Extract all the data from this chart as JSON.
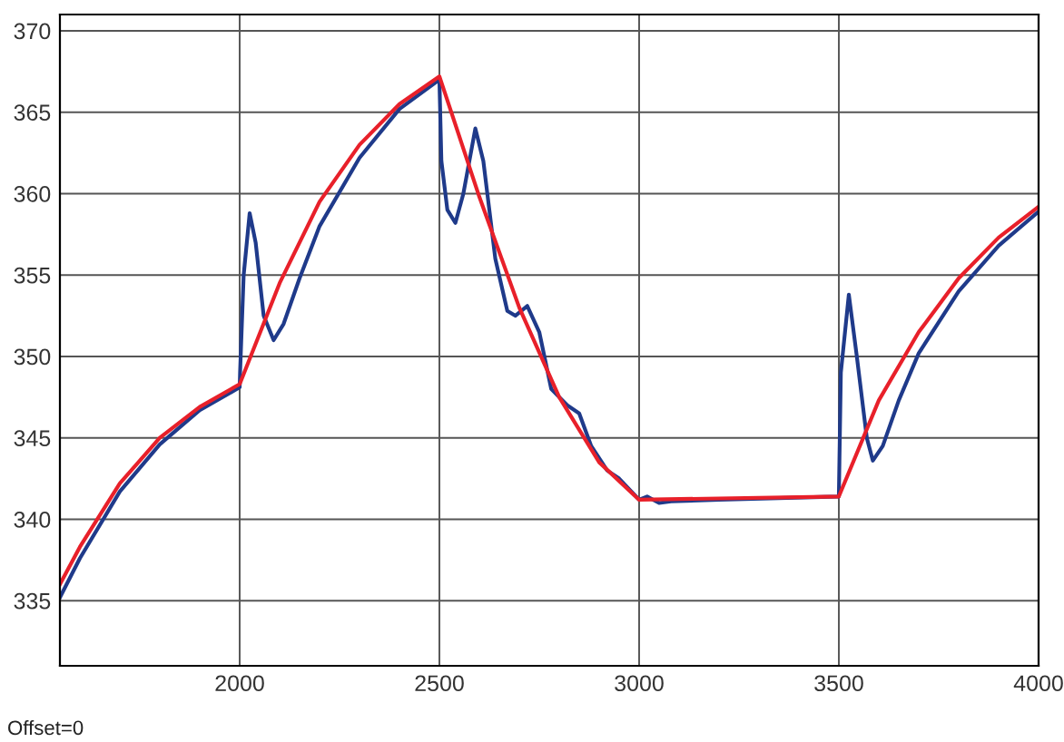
{
  "chart_data": {
    "type": "line",
    "xlim": [
      1550,
      4000
    ],
    "ylim": [
      331,
      371
    ],
    "xticks": [
      2000,
      2500,
      3000,
      3500,
      4000
    ],
    "yticks": [
      335,
      340,
      345,
      350,
      355,
      360,
      365,
      370
    ],
    "grid": true,
    "annotations": [
      "Offset=0"
    ],
    "series": [
      {
        "color": "#1f3a8a",
        "x": [
          1550,
          1600,
          1700,
          1800,
          1900,
          2000,
          2001,
          2010,
          2025,
          2040,
          2060,
          2085,
          2110,
          2150,
          2200,
          2300,
          2400,
          2500,
          2505,
          2520,
          2540,
          2560,
          2590,
          2610,
          2640,
          2670,
          2690,
          2720,
          2750,
          2780,
          2820,
          2850,
          2880,
          2920,
          2950,
          3000,
          3020,
          3050,
          3080,
          3200,
          3500,
          3505,
          3525,
          3545,
          3570,
          3585,
          3610,
          3650,
          3700,
          3800,
          3900,
          4000
        ],
        "values": [
          335.2,
          337.6,
          341.7,
          344.6,
          346.7,
          348.1,
          349,
          355,
          358.8,
          357,
          352.5,
          351.0,
          352.0,
          354.8,
          358.0,
          362.2,
          365.2,
          367.0,
          362,
          359,
          358.2,
          360,
          364.0,
          362,
          356,
          352.8,
          352.5,
          353.1,
          351.5,
          348,
          347,
          346.5,
          344.5,
          343,
          342.5,
          341.2,
          341.4,
          341.0,
          341.1,
          341.2,
          341.4,
          349,
          353.8,
          350,
          345,
          343.6,
          344.5,
          347.3,
          350.2,
          354.0,
          356.8,
          358.9
        ]
      },
      {
        "color": "#e8202a",
        "x": [
          1550,
          1600,
          1700,
          1800,
          1900,
          2000,
          2100,
          2200,
          2300,
          2400,
          2500,
          2600,
          2700,
          2800,
          2900,
          3000,
          3500,
          3600,
          3700,
          3800,
          3900,
          4000
        ],
        "values": [
          336.0,
          338.3,
          342.2,
          345.0,
          346.9,
          348.3,
          354.5,
          359.5,
          363.0,
          365.5,
          367.2,
          359.8,
          353.0,
          347.5,
          343.5,
          341.2,
          341.4,
          347.3,
          351.5,
          354.8,
          357.3,
          359.2
        ]
      }
    ]
  }
}
